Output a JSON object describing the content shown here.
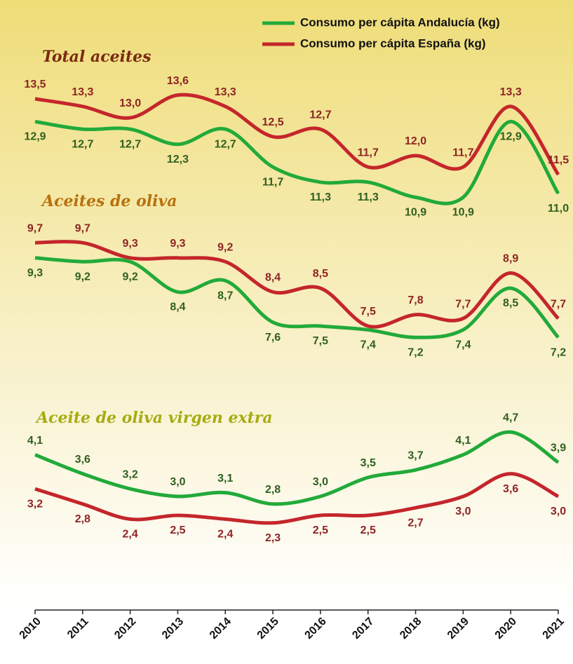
{
  "chart_data": {
    "type": "line",
    "categories": [
      "2010",
      "2011",
      "2012",
      "2013",
      "2014",
      "2015",
      "2016",
      "2017",
      "2018",
      "2019",
      "2020",
      "2021"
    ],
    "series": [
      {
        "name": "Consumo per cápita Andalucía (kg)",
        "color": "#22aa3a"
      },
      {
        "name": "Consumo per cápita España (kg)",
        "color": "#c4262b"
      }
    ],
    "label_colors": [
      "#2f5f1f",
      "#8e2424"
    ],
    "ylim": [
      0,
      16
    ],
    "groups": [
      {
        "title": "Total aceites",
        "title_color": "#7a2a12",
        "values": [
          [
            12.9,
            12.7,
            12.7,
            12.3,
            12.7,
            11.7,
            11.3,
            11.3,
            10.9,
            10.9,
            12.9,
            11.0
          ],
          [
            13.5,
            13.3,
            13.0,
            13.6,
            13.3,
            12.5,
            12.7,
            11.7,
            12.0,
            11.7,
            13.3,
            11.5
          ]
        ],
        "value_labels": [
          [
            "12,9",
            "12,7",
            "12,7",
            "12,3",
            "12,7",
            "11,7",
            "11,3",
            "11,3",
            "10,9",
            "10,9",
            "12,9",
            "11,0"
          ],
          [
            "13,5",
            "13,3",
            "13,0",
            "13,6",
            "13,3",
            "12,5",
            "12,7",
            "11,7",
            "12,0",
            "11,7",
            "13,3",
            "11,5"
          ]
        ]
      },
      {
        "title": "Aceites de oliva",
        "title_color": "#b8700e",
        "values": [
          [
            9.3,
            9.2,
            9.2,
            8.4,
            8.7,
            7.6,
            7.5,
            7.4,
            7.2,
            7.4,
            8.5,
            7.2
          ],
          [
            9.7,
            9.7,
            9.3,
            9.3,
            9.2,
            8.4,
            8.5,
            7.5,
            7.8,
            7.7,
            8.9,
            7.7
          ]
        ],
        "value_labels": [
          [
            "9,3",
            "9,2",
            "9,2",
            "8,4",
            "8,7",
            "7,6",
            "7,5",
            "7,4",
            "7,2",
            "7,4",
            "8,5",
            "7,2"
          ],
          [
            "9,7",
            "9,7",
            "9,3",
            "9,3",
            "9,2",
            "8,4",
            "8,5",
            "7,5",
            "7,8",
            "7,7",
            "8,9",
            "7,7"
          ]
        ]
      },
      {
        "title": "Aceite de oliva virgen extra",
        "title_color": "#a6ac12",
        "values": [
          [
            4.1,
            3.6,
            3.2,
            3.0,
            3.1,
            2.8,
            3.0,
            3.5,
            3.7,
            4.1,
            4.7,
            3.9
          ],
          [
            3.2,
            2.8,
            2.4,
            2.5,
            2.4,
            2.3,
            2.5,
            2.5,
            2.7,
            3.0,
            3.6,
            3.0
          ]
        ],
        "value_labels": [
          [
            "4,1",
            "3,6",
            "3,2",
            "3,0",
            "3,1",
            "2,8",
            "3,0",
            "3,5",
            "3,7",
            "4,1",
            "4,7",
            "3,9"
          ],
          [
            "3,2",
            "2,8",
            "2,4",
            "2,5",
            "2,4",
            "2,3",
            "2,5",
            "2,5",
            "2,7",
            "3,0",
            "3,6",
            "3,0"
          ]
        ]
      }
    ]
  }
}
